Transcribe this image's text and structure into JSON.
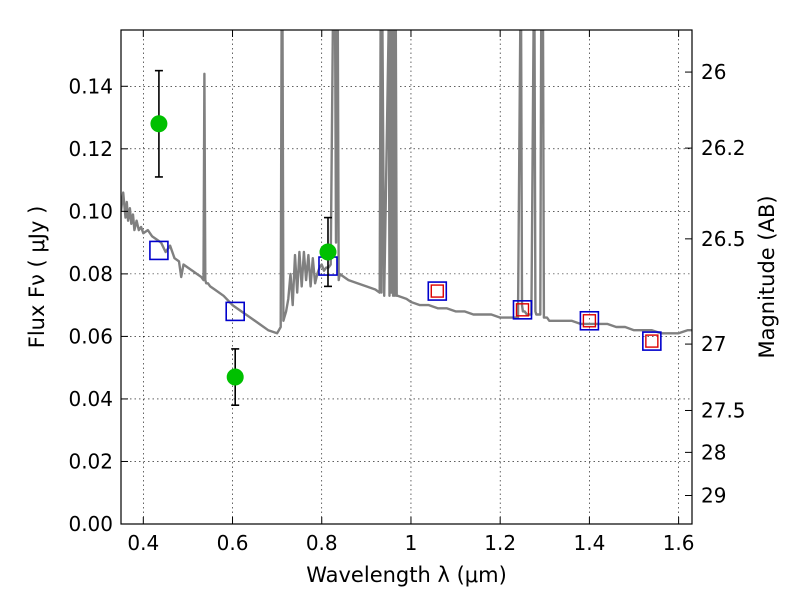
{
  "chart_data": {
    "type": "scatter",
    "xlabel": "Wavelength  λ (μm)",
    "ylabel": "Flux  Fν  ( μJy )",
    "y2label": "Magnitude (AB)",
    "xlim": [
      0.35,
      1.63
    ],
    "ylim": [
      0.0,
      0.158
    ],
    "grid": true,
    "x_ticks": [
      0.4,
      0.6,
      0.8,
      1.0,
      1.2,
      1.4,
      1.6
    ],
    "x_tick_labels": [
      "0.4",
      "0.6",
      "0.8",
      "1",
      "1.2",
      "1.4",
      "1.6"
    ],
    "y_ticks": [
      0.0,
      0.02,
      0.04,
      0.06,
      0.08,
      0.1,
      0.12,
      0.14
    ],
    "y_tick_labels": [
      "0.00",
      "0.02",
      "0.04",
      "0.06",
      "0.08",
      "0.10",
      "0.12",
      "0.14"
    ],
    "mag_ticks": [
      26,
      26.2,
      26.5,
      27,
      27.5,
      28,
      29
    ],
    "mag_tick_labels": [
      "26",
      "26.2",
      "26.5",
      "27",
      "27.5",
      "28",
      "29"
    ],
    "series": [
      {
        "kind": "model-spectrum",
        "color": "#808080",
        "x": [
          0.35,
          0.355,
          0.36,
          0.363,
          0.366,
          0.37,
          0.373,
          0.377,
          0.38,
          0.385,
          0.39,
          0.395,
          0.4,
          0.41,
          0.42,
          0.43,
          0.44,
          0.45,
          0.46,
          0.47,
          0.48,
          0.485,
          0.49,
          0.5,
          0.51,
          0.52,
          0.53,
          0.535,
          0.537,
          0.539,
          0.541,
          0.545,
          0.55,
          0.56,
          0.58,
          0.6,
          0.62,
          0.64,
          0.66,
          0.68,
          0.7,
          0.708,
          0.71,
          0.712,
          0.714,
          0.716,
          0.72,
          0.725,
          0.73,
          0.735,
          0.74,
          0.745,
          0.75,
          0.755,
          0.76,
          0.765,
          0.77,
          0.775,
          0.78,
          0.785,
          0.79,
          0.795,
          0.8,
          0.805,
          0.81,
          0.815,
          0.82,
          0.825,
          0.83,
          0.832,
          0.834,
          0.836,
          0.838,
          0.84,
          0.85,
          0.86,
          0.88,
          0.9,
          0.92,
          0.93,
          0.932,
          0.934,
          0.936,
          0.94,
          0.95,
          0.952,
          0.954,
          0.956,
          0.958,
          0.96,
          0.962,
          0.964,
          0.966,
          0.968,
          0.97,
          0.99,
          1.0,
          1.02,
          1.04,
          1.06,
          1.08,
          1.1,
          1.12,
          1.14,
          1.16,
          1.18,
          1.2,
          1.22,
          1.24,
          1.245,
          1.247,
          1.249,
          1.251,
          1.255,
          1.26,
          1.265,
          1.27,
          1.275,
          1.277,
          1.279,
          1.281,
          1.285,
          1.29,
          1.292,
          1.294,
          1.296,
          1.298,
          1.3,
          1.302,
          1.305,
          1.31,
          1.32,
          1.34,
          1.36,
          1.38,
          1.4,
          1.42,
          1.44,
          1.46,
          1.48,
          1.5,
          1.52,
          1.54,
          1.56,
          1.58,
          1.6,
          1.62,
          1.63
        ],
        "y": [
          0.1,
          0.106,
          0.098,
          0.103,
          0.097,
          0.101,
          0.096,
          0.099,
          0.094,
          0.097,
          0.094,
          0.095,
          0.093,
          0.094,
          0.092,
          0.091,
          0.09,
          0.087,
          0.089,
          0.085,
          0.084,
          0.079,
          0.083,
          0.082,
          0.081,
          0.08,
          0.079,
          0.078,
          0.144,
          0.078,
          0.077,
          0.077,
          0.076,
          0.075,
          0.073,
          0.07,
          0.068,
          0.066,
          0.064,
          0.062,
          0.061,
          0.063,
          0.16,
          0.16,
          0.065,
          0.066,
          0.068,
          0.072,
          0.08,
          0.07,
          0.086,
          0.074,
          0.087,
          0.076,
          0.087,
          0.078,
          0.086,
          0.076,
          0.085,
          0.077,
          0.08,
          0.082,
          0.083,
          0.081,
          0.082,
          0.082,
          0.083,
          0.16,
          0.16,
          0.09,
          0.16,
          0.16,
          0.078,
          0.08,
          0.079,
          0.078,
          0.077,
          0.076,
          0.075,
          0.074,
          0.16,
          0.074,
          0.16,
          0.073,
          0.16,
          0.073,
          0.16,
          0.074,
          0.16,
          0.073,
          0.16,
          0.073,
          0.16,
          0.073,
          0.073,
          0.072,
          0.071,
          0.07,
          0.07,
          0.069,
          0.069,
          0.068,
          0.068,
          0.067,
          0.067,
          0.067,
          0.066,
          0.066,
          0.066,
          0.16,
          0.16,
          0.07,
          0.068,
          0.068,
          0.067,
          0.067,
          0.067,
          0.16,
          0.16,
          0.068,
          0.067,
          0.067,
          0.067,
          0.16,
          0.16,
          0.16,
          0.066,
          0.066,
          0.066,
          0.066,
          0.065,
          0.065,
          0.065,
          0.065,
          0.064,
          0.064,
          0.064,
          0.064,
          0.063,
          0.063,
          0.062,
          0.062,
          0.062,
          0.061,
          0.061,
          0.061,
          0.062,
          0.062
        ]
      },
      {
        "kind": "observed",
        "marker": "circle",
        "color": "#00c000",
        "points": [
          {
            "x": 0.435,
            "y": 0.128,
            "err_lo": 0.111,
            "err_hi": 0.145
          },
          {
            "x": 0.606,
            "y": 0.047,
            "err_lo": 0.038,
            "err_hi": 0.056
          },
          {
            "x": 0.814,
            "y": 0.087,
            "err_lo": 0.076,
            "err_hi": 0.098
          }
        ]
      },
      {
        "kind": "model-photometry",
        "marker": "square-open",
        "color": "#0000cc",
        "points": [
          {
            "x": 0.435,
            "y": 0.0875
          },
          {
            "x": 0.606,
            "y": 0.068
          },
          {
            "x": 0.814,
            "y": 0.0825
          },
          {
            "x": 1.059,
            "y": 0.0745
          },
          {
            "x": 1.25,
            "y": 0.0685
          },
          {
            "x": 1.4,
            "y": 0.065
          },
          {
            "x": 1.54,
            "y": 0.0585
          }
        ]
      },
      {
        "kind": "observed-nir",
        "marker": "square-open-small",
        "color": "#dd0000",
        "points": [
          {
            "x": 1.059,
            "y": 0.0745
          },
          {
            "x": 1.25,
            "y": 0.0685
          },
          {
            "x": 1.4,
            "y": 0.065
          },
          {
            "x": 1.54,
            "y": 0.0585
          }
        ]
      }
    ]
  }
}
